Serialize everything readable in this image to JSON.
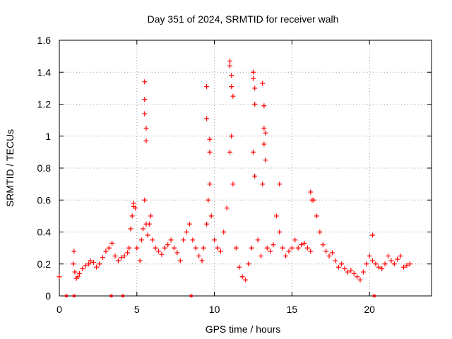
{
  "chart_data": {
    "type": "scatter",
    "title": "Day 351 of 2024, SRMTID for receiver walh",
    "xlabel": "GPS time / hours",
    "ylabel": "SRMTID / TECUs",
    "xlim": [
      0,
      24
    ],
    "ylim": [
      0,
      1.6
    ],
    "xticks": [
      0,
      5,
      10,
      15,
      20
    ],
    "xtick_labels": [
      "0",
      "5",
      "10",
      "15",
      "20"
    ],
    "yticks": [
      0,
      0.2,
      0.4,
      0.6,
      0.8,
      1.0,
      1.2,
      1.4,
      1.6
    ],
    "ytick_labels": [
      "0",
      "0.2",
      "0.4",
      "0.6",
      "0.8",
      "1",
      "1.2",
      "1.4",
      "1.6"
    ],
    "grid": true,
    "marker": "+",
    "series_color": "#ff0000",
    "series": [
      {
        "name": "SRMTID",
        "x": [
          0.0,
          0.9,
          1.0,
          1.1,
          1.2,
          1.3,
          1.5,
          1.7,
          1.9,
          2.0,
          2.2,
          2.4,
          2.6,
          2.8,
          3.0,
          3.2,
          3.4,
          3.6,
          3.8,
          4.0,
          4.2,
          4.4,
          4.5,
          4.6,
          4.7,
          4.8,
          5.0,
          5.2,
          5.3,
          5.4,
          5.5,
          5.6,
          5.7,
          5.8,
          5.9,
          6.0,
          6.2,
          6.4,
          6.6,
          6.8,
          7.0,
          7.2,
          7.4,
          7.6,
          7.8,
          8.0,
          8.2,
          8.4,
          8.6,
          8.8,
          9.0,
          9.2,
          9.3,
          9.5,
          9.6,
          9.7,
          9.8,
          10.0,
          10.2,
          10.4,
          10.6,
          10.8,
          11.0,
          11.1,
          11.2,
          11.4,
          11.6,
          11.8,
          12.0,
          12.2,
          12.4,
          12.5,
          12.6,
          12.8,
          13.0,
          13.1,
          13.2,
          13.4,
          13.6,
          13.8,
          14.0,
          14.2,
          14.4,
          14.6,
          14.8,
          15.0,
          15.2,
          15.4,
          15.6,
          15.8,
          16.0,
          16.2,
          16.4,
          16.6,
          16.8,
          17.0,
          17.2,
          17.4,
          17.6,
          17.8,
          18.0,
          18.2,
          18.4,
          18.6,
          18.8,
          19.0,
          19.2,
          19.4,
          19.6,
          19.8,
          20.0,
          20.2,
          20.4,
          20.6,
          20.8,
          21.0,
          21.2,
          21.4,
          21.6,
          21.8,
          22.0,
          22.2,
          22.4,
          22.6,
          5.5,
          5.5,
          5.5,
          5.6,
          5.6,
          9.5,
          9.5,
          9.7,
          9.7,
          11.0,
          11.0,
          11.1,
          11.1,
          11.2,
          12.5,
          12.5,
          12.6,
          12.6,
          13.1,
          13.2,
          13.2,
          13.3,
          13.3,
          14.2,
          16.2,
          16.3,
          4.8,
          4.9,
          20.2,
          0.95
        ],
        "y": [
          0.12,
          0.2,
          0.15,
          0.11,
          0.12,
          0.14,
          0.17,
          0.19,
          0.2,
          0.22,
          0.21,
          0.18,
          0.2,
          0.24,
          0.28,
          0.3,
          0.33,
          0.25,
          0.22,
          0.24,
          0.25,
          0.27,
          0.3,
          0.42,
          0.5,
          0.56,
          0.3,
          0.22,
          0.35,
          0.42,
          0.6,
          0.45,
          0.38,
          0.45,
          0.5,
          0.35,
          0.3,
          0.28,
          0.26,
          0.3,
          0.32,
          0.35,
          0.3,
          0.27,
          0.22,
          0.35,
          0.4,
          0.45,
          0.35,
          0.3,
          0.25,
          0.22,
          0.3,
          0.45,
          0.6,
          0.7,
          0.5,
          0.35,
          0.3,
          0.28,
          0.4,
          0.55,
          0.9,
          1.0,
          0.7,
          0.3,
          0.18,
          0.12,
          0.1,
          0.2,
          0.3,
          0.9,
          0.75,
          0.35,
          0.25,
          0.7,
          0.95,
          0.3,
          0.28,
          0.32,
          0.5,
          0.4,
          0.3,
          0.25,
          0.28,
          0.3,
          0.35,
          0.3,
          0.32,
          0.33,
          0.3,
          0.28,
          0.6,
          0.5,
          0.4,
          0.32,
          0.28,
          0.25,
          0.27,
          0.22,
          0.18,
          0.2,
          0.17,
          0.15,
          0.16,
          0.14,
          0.12,
          0.1,
          0.15,
          0.2,
          0.25,
          0.22,
          0.2,
          0.18,
          0.17,
          0.2,
          0.25,
          0.22,
          0.2,
          0.23,
          0.25,
          0.18,
          0.19,
          0.2,
          1.34,
          1.23,
          1.14,
          1.05,
          0.97,
          1.31,
          1.11,
          0.98,
          0.9,
          1.47,
          1.44,
          1.38,
          1.31,
          1.25,
          1.4,
          1.36,
          1.3,
          1.2,
          1.33,
          1.19,
          1.05,
          1.02,
          0.85,
          0.7,
          0.65,
          0.6,
          0.58,
          0.55,
          0.38,
          0.28
        ],
        "x_markers": [
          0.45,
          0.95,
          3.35,
          4.1,
          8.5,
          20.3
        ]
      }
    ]
  }
}
